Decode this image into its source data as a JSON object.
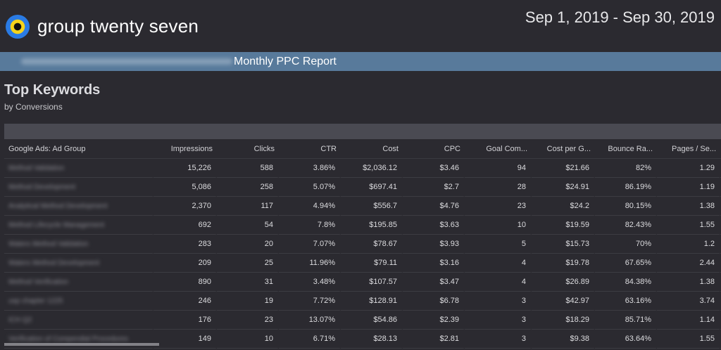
{
  "header": {
    "brand": "group twenty seven",
    "date_range": "Sep 1, 2019 - Sep 30, 2019"
  },
  "banner": {
    "blurred_text": "Pharma Laboratories · Method Development",
    "title": "Monthly PPC Report"
  },
  "section": {
    "title": "Top Keywords",
    "subtitle": "by Conversions"
  },
  "table": {
    "columns": [
      "Google Ads: Ad Group",
      "Impressions",
      "Clicks",
      "CTR",
      "Cost",
      "CPC",
      "Goal Com...",
      "Cost per G...",
      "Bounce Ra...",
      "Pages / Se..."
    ],
    "rows": [
      [
        "Method Validation",
        "15,226",
        "588",
        "3.86%",
        "$2,036.12",
        "$3.46",
        "94",
        "$21.66",
        "82%",
        "1.29"
      ],
      [
        "Method Development",
        "5,086",
        "258",
        "5.07%",
        "$697.41",
        "$2.7",
        "28",
        "$24.91",
        "86.19%",
        "1.19"
      ],
      [
        "Analytical Method Development",
        "2,370",
        "117",
        "4.94%",
        "$556.7",
        "$4.76",
        "23",
        "$24.2",
        "80.15%",
        "1.38"
      ],
      [
        "Method Lifecycle Management",
        "692",
        "54",
        "7.8%",
        "$195.85",
        "$3.63",
        "10",
        "$19.59",
        "82.43%",
        "1.55"
      ],
      [
        "Waters Method Validation",
        "283",
        "20",
        "7.07%",
        "$78.67",
        "$3.93",
        "5",
        "$15.73",
        "70%",
        "1.2"
      ],
      [
        "Waters Method Development",
        "209",
        "25",
        "11.96%",
        "$79.11",
        "$3.16",
        "4",
        "$19.78",
        "67.65%",
        "2.44"
      ],
      [
        "Method Verification",
        "890",
        "31",
        "3.48%",
        "$107.57",
        "$3.47",
        "4",
        "$26.89",
        "84.38%",
        "1.38"
      ],
      [
        "usp chapter 1225",
        "246",
        "19",
        "7.72%",
        "$128.91",
        "$6.78",
        "3",
        "$42.97",
        "63.16%",
        "3.74"
      ],
      [
        "ICH Q2",
        "176",
        "23",
        "13.07%",
        "$54.86",
        "$2.39",
        "3",
        "$18.29",
        "85.71%",
        "1.14"
      ],
      [
        "Verification of Compendial Procedures",
        "149",
        "10",
        "6.71%",
        "$28.13",
        "$2.81",
        "3",
        "$9.38",
        "63.64%",
        "1.55"
      ]
    ]
  },
  "colors": {
    "background": "#2b2a30",
    "banner": "#587a9b",
    "logo_outer": "#2a7be4",
    "logo_inner": "#f5d31b"
  }
}
